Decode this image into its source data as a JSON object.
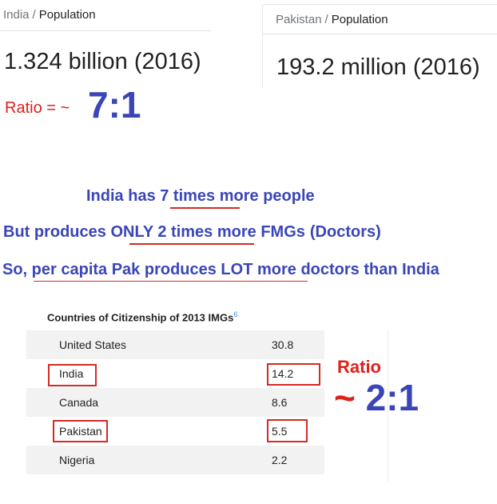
{
  "population_cards": [
    {
      "country": "India",
      "metric": "Population",
      "value": "1.324 billion (2016)"
    },
    {
      "country": "Pakistan",
      "metric": "Population",
      "value": "193.2 million (2016)"
    }
  ],
  "breadcrumb_separator": "/",
  "population_ratio": {
    "label": "Ratio = ~",
    "value": "7:1"
  },
  "claims": {
    "line1": {
      "a": "India has ",
      "b": "7 times",
      "c": " more people"
    },
    "line2": {
      "a": "But produces ",
      "b": "ONLY 2 times",
      "c": " more FMGs",
      "d": "(Doctors)"
    },
    "line3": {
      "a": "So, ",
      "b": "per capita Pak produces LOT more",
      "c": " doctors than India"
    }
  },
  "img_table": {
    "title": "Countries of Citizenship of 2013 IMGs",
    "footnote": "6",
    "rows": [
      {
        "country": "United States",
        "value": "30.8"
      },
      {
        "country": "India",
        "value": "14.2"
      },
      {
        "country": "Canada",
        "value": "8.6"
      },
      {
        "country": "Pakistan",
        "value": "5.5"
      },
      {
        "country": "Nigeria",
        "value": "2.2"
      }
    ]
  },
  "doctor_ratio": {
    "label": "Ratio",
    "value": "~ 2:1"
  },
  "colors": {
    "annotation_red": "#e0201a",
    "annotation_blue": "#3a46b8",
    "highlight_box": "#d62a25"
  }
}
